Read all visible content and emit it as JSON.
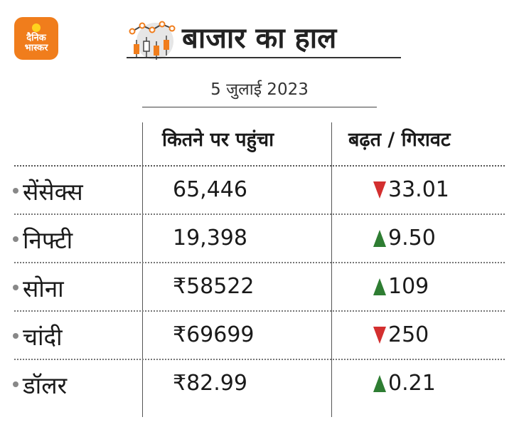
{
  "logo": {
    "line1": "दैनिक",
    "line2": "भास्कर"
  },
  "title": "बाजार का हाल",
  "date": "5 जुलाई 2023",
  "columns": {
    "value": "कितने पर पहुंचा",
    "change": "बढ़त / गिरावट"
  },
  "colors": {
    "up": "#2e7d32",
    "down": "#d32f2f",
    "brand": "#f07d1c"
  },
  "rows": [
    {
      "name": "सेंसेक्स",
      "value": "65,446",
      "direction": "down",
      "change": "33.01"
    },
    {
      "name": "निफ्टी",
      "value": "19,398",
      "direction": "up",
      "change": "9.50"
    },
    {
      "name": "सोना",
      "value": "₹58522",
      "direction": "up",
      "change": "109"
    },
    {
      "name": "चांदी",
      "value": "₹69699",
      "direction": "down",
      "change": "250"
    },
    {
      "name": "डॉलर",
      "value": "₹82.99",
      "direction": "up",
      "change": "0.21"
    }
  ]
}
